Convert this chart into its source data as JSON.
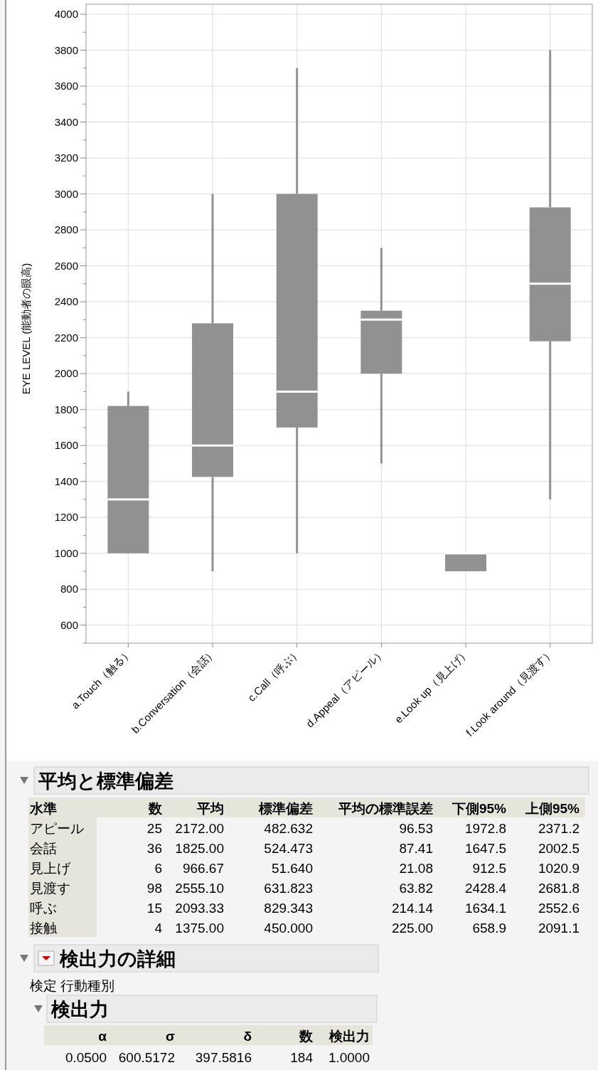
{
  "chart_data": {
    "type": "box",
    "ylabel": "EYE LEVEL (能動者の眼高)",
    "categories": [
      "a.Touch（触る）",
      "b.Conversation（会話）",
      "c.Call（呼ぶ）",
      "d.Appeal（アピール）",
      "e.Look up（見上げ）",
      "f.Look around（見渡す）"
    ],
    "boxes": [
      {
        "low": 1000,
        "q1": 1000,
        "median": 1300,
        "q3": 1820,
        "high": 1900
      },
      {
        "low": 900,
        "q1": 1425,
        "median": 1600,
        "q3": 2280,
        "high": 3000
      },
      {
        "low": 1000,
        "q1": 1700,
        "median": 1900,
        "q3": 3000,
        "high": 3700
      },
      {
        "low": 1500,
        "q1": 2000,
        "median": 2300,
        "q3": 2350,
        "high": 2700
      },
      {
        "low": 900,
        "q1": 900,
        "median": 1000,
        "q3": 1000,
        "high": 1000
      },
      {
        "low": 1300,
        "q1": 2180,
        "median": 2500,
        "q3": 2925,
        "high": 3800
      }
    ],
    "color": "#919191",
    "ylim": [
      500,
      4000
    ],
    "yticks": [
      {
        "value": 500,
        "label": null
      },
      600,
      {
        "value": 700,
        "label": null
      },
      800,
      {
        "value": 900,
        "label": null
      },
      1000,
      {
        "value": 1100,
        "label": null
      },
      1200,
      {
        "value": 1300,
        "label": null
      },
      1400,
      {
        "value": 1500,
        "label": null
      },
      1600,
      {
        "value": 1700,
        "label": null
      },
      1800,
      {
        "value": 1900,
        "label": null
      },
      2000,
      {
        "value": 2100,
        "label": null
      },
      2200,
      {
        "value": 2300,
        "label": null
      },
      2400,
      {
        "value": 2500,
        "label": null
      },
      2600,
      {
        "value": 2700,
        "label": null
      },
      2800,
      {
        "value": 2900,
        "label": null
      },
      3000,
      {
        "value": 3100,
        "label": null
      },
      3200,
      {
        "value": 3300,
        "label": null
      },
      3400,
      {
        "value": 3500,
        "label": null
      },
      3600,
      {
        "value": 3700,
        "label": null
      },
      3800,
      {
        "value": 3900,
        "label": null
      },
      4000
    ],
    "grid": true,
    "annotations": [
      "平均と標準偏差",
      "水準",
      "数",
      "平均",
      "標準偏差",
      "平均の標準誤差",
      "下側95%",
      "上側95%",
      "アピール",
      "25",
      "2172.00",
      "482.632",
      "96.53",
      "1972.8",
      "2371.2",
      "会話",
      "36",
      "1825.00",
      "524.473",
      "87.41",
      "1647.5",
      "2002.5",
      "見上げ",
      "6",
      "966.67",
      "51.640",
      "21.08",
      "912.5",
      "1020.9",
      "見渡す",
      "98",
      "2555.10",
      "631.823",
      "63.82",
      "2428.4",
      "2681.8",
      "呼ぶ",
      "15",
      "2093.33",
      "829.343",
      "214.14",
      "1634.1",
      "2552.6",
      "接触",
      "4",
      "1375.00",
      "450.000",
      "225.00",
      "658.9",
      "2091.1",
      "検出力の詳細",
      "検定 行動種別",
      "検出力",
      "α",
      "σ",
      "δ",
      "数",
      "検出力",
      "0.0500",
      "600.5172",
      "397.5816",
      "184",
      "1.0000"
    ]
  }
}
